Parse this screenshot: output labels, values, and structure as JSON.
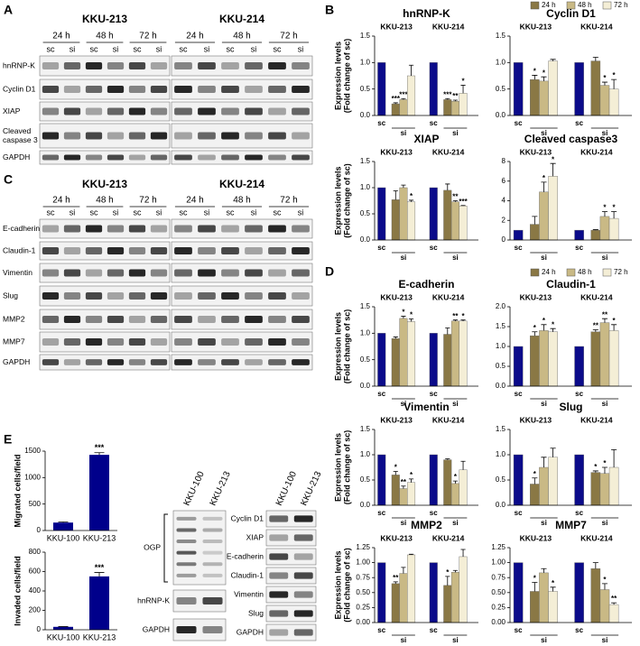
{
  "panel_labels": [
    "A",
    "B",
    "C",
    "D",
    "E"
  ],
  "legend": [
    {
      "name": "24 h",
      "color": "#8a7845"
    },
    {
      "name": "48 h",
      "color": "#c9b985"
    },
    {
      "name": "72 h",
      "color": "#f4eed6"
    }
  ],
  "sc_color": "#0b0b8a",
  "blot_a": {
    "cell_lines": [
      "KKU-213",
      "KKU-214"
    ],
    "times": [
      "24 h",
      "48 h",
      "72 h"
    ],
    "lanes": [
      "sc",
      "si"
    ],
    "rows": [
      [
        "hnRNP-K"
      ],
      [
        "Cyclin D1"
      ],
      [
        "XIAP"
      ],
      [
        "Cleaved",
        "caspase 3"
      ],
      [
        "GAPDH"
      ]
    ]
  },
  "blot_c": {
    "cell_lines": [
      "KKU-213",
      "KKU-214"
    ],
    "times": [
      "24 h",
      "48 h",
      "72 h"
    ],
    "lanes": [
      "sc",
      "si"
    ],
    "rows": [
      [
        "E-cadherin"
      ],
      [
        "Claudin-1"
      ],
      [
        "Vimentin"
      ],
      [
        "Slug"
      ],
      [
        "MMP2"
      ],
      [
        "MMP7"
      ],
      [
        "GAPDH"
      ]
    ]
  },
  "blot_e": {
    "lanes": [
      "KKU-100",
      "KKU-213"
    ],
    "left_rows": [
      "OGP",
      "hnRNP-K",
      "GAPDH"
    ],
    "right_rows": [
      "Cyclin D1",
      "XIAP",
      "E-cadherin",
      "Claudin-1",
      "Vimentin",
      "Slug",
      "GAPDH"
    ]
  },
  "chart_data": [
    {
      "type": "grouped",
      "title": "hnRNP-K",
      "ylabel": [
        "Expression levels",
        "(Fold change of sc)"
      ],
      "x_labels": [
        "sc",
        "si"
      ],
      "ylim": [
        0,
        1.5
      ],
      "yticks": [
        {
          "value": 0,
          "label": "0.0"
        },
        {
          "value": 0.5,
          "label": "0.5"
        },
        {
          "value": 1,
          "label": "1.0"
        },
        {
          "value": 1.5,
          "label": "1.5"
        }
      ],
      "groups": [
        {
          "name": "KKU-213",
          "values": [
            1,
            0.22,
            0.3,
            0.75
          ],
          "errors": [
            0,
            0.02,
            0.02,
            0.2
          ],
          "annotations": [
            null,
            "***",
            "***",
            null
          ]
        },
        {
          "name": "KKU-214",
          "values": [
            1,
            0.3,
            0.27,
            0.42
          ],
          "errors": [
            0,
            0.02,
            0.02,
            0.15
          ],
          "annotations": [
            null,
            "***",
            "**",
            "*"
          ]
        }
      ]
    },
    {
      "type": "grouped",
      "title": "Cyclin D1",
      "x_labels": [
        "sc",
        "si"
      ],
      "ylim": [
        0,
        1.5
      ],
      "yticks": [
        {
          "value": 0,
          "label": "0.0"
        },
        {
          "value": 0.5,
          "label": "0.5"
        },
        {
          "value": 1,
          "label": "1.0"
        },
        {
          "value": 1.5,
          "label": "1.5"
        }
      ],
      "groups": [
        {
          "name": "KKU-213",
          "values": [
            1,
            0.68,
            0.65,
            1.03
          ],
          "errors": [
            0,
            0.08,
            0.08,
            0.03
          ],
          "annotations": [
            null,
            "*",
            "*",
            null
          ]
        },
        {
          "name": "KKU-214",
          "values": [
            1,
            1.03,
            0.57,
            0.5
          ],
          "errors": [
            0,
            0.07,
            0.06,
            0.18
          ],
          "annotations": [
            null,
            null,
            "*",
            "*"
          ]
        }
      ]
    },
    {
      "type": "grouped",
      "title": "XIAP",
      "ylabel": [
        "Expression levels",
        "(Fold change of sc)"
      ],
      "x_labels": [
        "sc",
        "si"
      ],
      "ylim": [
        0,
        1.5
      ],
      "yticks": [
        {
          "value": 0,
          "label": "0.0"
        },
        {
          "value": 0.5,
          "label": "0.5"
        },
        {
          "value": 1,
          "label": "1.0"
        },
        {
          "value": 1.5,
          "label": "1.5"
        }
      ],
      "groups": [
        {
          "name": "KKU-213",
          "values": [
            1,
            0.77,
            1.0,
            0.73
          ],
          "errors": [
            0,
            0.17,
            0.05,
            0.03
          ],
          "annotations": [
            null,
            null,
            null,
            "*"
          ]
        },
        {
          "name": "KKU-214",
          "values": [
            1,
            0.95,
            0.73,
            0.65
          ],
          "errors": [
            0,
            0.12,
            0.02,
            0.01
          ],
          "annotations": [
            null,
            null,
            "**",
            "***"
          ]
        }
      ]
    },
    {
      "type": "grouped",
      "title": "Cleaved caspase3",
      "x_labels": [
        "sc",
        "si"
      ],
      "ylim": [
        0,
        8
      ],
      "yticks": [
        0,
        2,
        4,
        6,
        8
      ],
      "groups": [
        {
          "name": "KKU-213",
          "values": [
            1,
            1.6,
            4.9,
            6.5
          ],
          "errors": [
            0,
            0.8,
            1.0,
            1.3
          ],
          "annotations": [
            null,
            null,
            "*",
            "*"
          ]
        },
        {
          "name": "KKU-214",
          "values": [
            1,
            1.0,
            2.4,
            2.2
          ],
          "errors": [
            0,
            0.05,
            0.5,
            0.7
          ],
          "annotations": [
            null,
            null,
            "*",
            "*"
          ]
        }
      ]
    },
    {
      "type": "grouped",
      "title": "E-cadherin",
      "ylabel": [
        "Expression levels",
        "(Fold change of sc)"
      ],
      "x_labels": [
        "sc",
        "si"
      ],
      "ylim": [
        0,
        1.5
      ],
      "yticks": [
        {
          "value": 0,
          "label": "0.0"
        },
        {
          "value": 0.5,
          "label": "0.5"
        },
        {
          "value": 1,
          "label": "1.0"
        },
        {
          "value": 1.5,
          "label": "1.5"
        }
      ],
      "groups": [
        {
          "name": "KKU-213",
          "values": [
            1,
            0.9,
            1.28,
            1.22
          ],
          "errors": [
            0,
            0.03,
            0.04,
            0.05
          ],
          "annotations": [
            null,
            null,
            "*",
            "*"
          ]
        },
        {
          "name": "KKU-214",
          "values": [
            1,
            0.98,
            1.23,
            1.23
          ],
          "errors": [
            0,
            0.12,
            0.02,
            0.02
          ],
          "annotations": [
            null,
            null,
            "**",
            "*"
          ]
        }
      ]
    },
    {
      "type": "grouped",
      "title": "Claudin-1",
      "x_labels": [
        "sc",
        "si"
      ],
      "ylim": [
        0,
        2
      ],
      "yticks": [
        {
          "value": 0,
          "label": "0.0"
        },
        {
          "value": 0.5,
          "label": "0.5"
        },
        {
          "value": 1,
          "label": "1.0"
        },
        {
          "value": 1.5,
          "label": "1.5"
        },
        {
          "value": 2,
          "label": "2.0"
        }
      ],
      "groups": [
        {
          "name": "KKU-213",
          "values": [
            1,
            1.27,
            1.4,
            1.37
          ],
          "errors": [
            0,
            0.1,
            0.15,
            0.08
          ],
          "annotations": [
            null,
            "*",
            "*",
            "*"
          ]
        },
        {
          "name": "KKU-214",
          "values": [
            1,
            1.37,
            1.6,
            1.4
          ],
          "errors": [
            0,
            0.05,
            0.1,
            0.15
          ],
          "annotations": [
            null,
            "**",
            "**",
            "*"
          ]
        }
      ]
    },
    {
      "type": "grouped",
      "title": "Vimentin",
      "ylabel": [
        "Expression levels",
        "(Fold change of sc)"
      ],
      "x_labels": [
        "sc",
        "si"
      ],
      "ylim": [
        0,
        1.5
      ],
      "yticks": [
        {
          "value": 0,
          "label": "0.0"
        },
        {
          "value": 0.5,
          "label": "0.5"
        },
        {
          "value": 1,
          "label": "1.0"
        },
        {
          "value": 1.5,
          "label": "1.5"
        }
      ],
      "groups": [
        {
          "name": "KKU-213",
          "values": [
            1,
            0.6,
            0.33,
            0.45
          ],
          "errors": [
            0,
            0.07,
            0.05,
            0.07
          ],
          "annotations": [
            null,
            "*",
            "**",
            "*"
          ]
        },
        {
          "name": "KKU-214",
          "values": [
            1,
            0.9,
            0.43,
            0.7
          ],
          "errors": [
            0,
            0.02,
            0.05,
            0.17
          ],
          "annotations": [
            null,
            null,
            "*",
            null
          ]
        }
      ]
    },
    {
      "type": "grouped",
      "title": "Slug",
      "x_labels": [
        "sc",
        "si"
      ],
      "ylim": [
        0,
        1.5
      ],
      "yticks": [
        {
          "value": 0,
          "label": "0.0"
        },
        {
          "value": 0.5,
          "label": "0.5"
        },
        {
          "value": 1,
          "label": "1.0"
        },
        {
          "value": 1.5,
          "label": "1.5"
        }
      ],
      "groups": [
        {
          "name": "KKU-213",
          "values": [
            1,
            0.42,
            0.75,
            0.95
          ],
          "errors": [
            0,
            0.12,
            0.2,
            0.18
          ],
          "annotations": [
            null,
            "*",
            null,
            null
          ]
        },
        {
          "name": "KKU-214",
          "values": [
            1,
            0.65,
            0.63,
            0.75
          ],
          "errors": [
            0,
            0.03,
            0.12,
            0.35
          ],
          "annotations": [
            null,
            "*",
            "*",
            null
          ]
        }
      ]
    },
    {
      "type": "grouped",
      "title": "MMP2",
      "ylabel": [
        "Expression levels",
        "(Fold change of sc)"
      ],
      "x_labels": [
        "sc",
        "si"
      ],
      "ylim": [
        0,
        1.25
      ],
      "yticks": [
        {
          "value": 0,
          "label": "0.00"
        },
        {
          "value": 0.25,
          "label": "0.25"
        },
        {
          "value": 0.5,
          "label": "0.50"
        },
        {
          "value": 0.75,
          "label": "0.75"
        },
        {
          "value": 1,
          "label": "1.00"
        },
        {
          "value": 1.25,
          "label": "1.25"
        }
      ],
      "groups": [
        {
          "name": "KKU-213",
          "values": [
            1,
            0.65,
            0.82,
            1.13
          ],
          "errors": [
            0,
            0.03,
            0.1,
            0.01
          ],
          "annotations": [
            null,
            "**",
            null,
            null
          ]
        },
        {
          "name": "KKU-214",
          "values": [
            1,
            0.62,
            0.84,
            1.1
          ],
          "errors": [
            0,
            0.15,
            0.03,
            0.12
          ],
          "annotations": [
            null,
            "*",
            null,
            null
          ]
        }
      ]
    },
    {
      "type": "grouped",
      "title": "MMP7",
      "x_labels": [
        "sc",
        "si"
      ],
      "ylim": [
        0,
        1.25
      ],
      "yticks": [
        {
          "value": 0,
          "label": "0.00"
        },
        {
          "value": 0.25,
          "label": "0.25"
        },
        {
          "value": 0.5,
          "label": "0.50"
        },
        {
          "value": 0.75,
          "label": "0.75"
        },
        {
          "value": 1,
          "label": "1.00"
        },
        {
          "value": 1.25,
          "label": "1.25"
        }
      ],
      "groups": [
        {
          "name": "KKU-213",
          "values": [
            1,
            0.52,
            0.83,
            0.52
          ],
          "errors": [
            0,
            0.15,
            0.07,
            0.07
          ],
          "annotations": [
            null,
            "*",
            null,
            "*"
          ]
        },
        {
          "name": "KKU-214",
          "values": [
            1,
            0.9,
            0.55,
            0.3
          ],
          "errors": [
            0,
            0.1,
            0.1,
            0.03
          ],
          "annotations": [
            null,
            null,
            "*",
            "**"
          ]
        }
      ]
    },
    {
      "type": "bar",
      "ylabel": [
        "Migrated cells/field"
      ],
      "categories": [
        "KKU-100",
        "KKU-213"
      ],
      "values": [
        150,
        1430
      ],
      "errors": [
        12,
        40
      ],
      "annotations": [
        null,
        "***"
      ],
      "color": "#00008b",
      "ylim": [
        0,
        1500
      ],
      "yticks": [
        0,
        500,
        1000,
        1500
      ]
    },
    {
      "type": "bar",
      "ylabel": [
        "Invaded cells/field"
      ],
      "categories": [
        "KKU-100",
        "KKU-213"
      ],
      "values": [
        30,
        550
      ],
      "errors": [
        3,
        40
      ],
      "annotations": [
        null,
        "***"
      ],
      "color": "#00008b",
      "ylim": [
        0,
        800
      ],
      "yticks": [
        0,
        200,
        400,
        600,
        800
      ]
    }
  ]
}
